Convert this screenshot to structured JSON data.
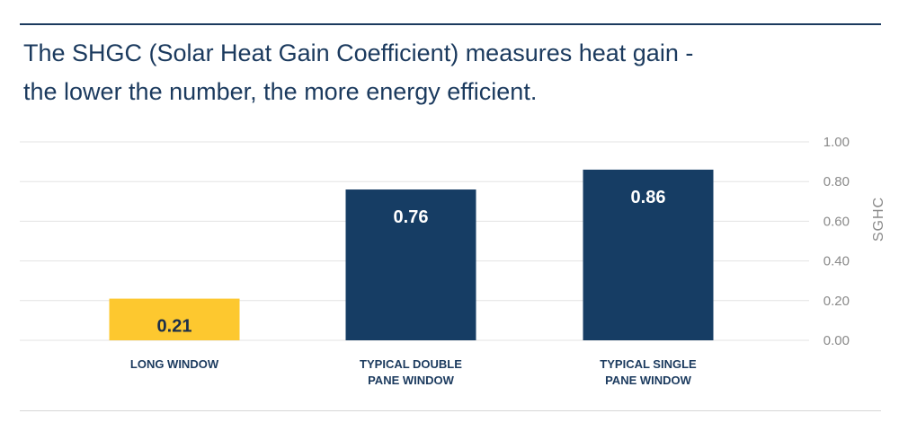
{
  "title_lines": [
    "The SHGC (Solar Heat Gain Coefficient) measures heat gain -",
    "the lower the number, the more energy efficient."
  ],
  "chart_data": {
    "type": "bar",
    "categories": [
      [
        "LONG WINDOW"
      ],
      [
        "TYPICAL DOUBLE",
        "PANE WINDOW"
      ],
      [
        "TYPICAL SINGLE",
        "PANE WINDOW"
      ]
    ],
    "values": [
      0.21,
      0.76,
      0.86
    ],
    "value_labels": [
      "0.21",
      "0.76",
      "0.86"
    ],
    "colors": [
      "#fdc82f",
      "#163d64",
      "#163d64"
    ],
    "label_colors": [
      "#1b2f4a",
      "#ffffff",
      "#ffffff"
    ],
    "ylabel": "SGHC",
    "ylim": [
      0,
      1.0
    ],
    "yticks": [
      "0.00",
      "0.20",
      "0.40",
      "0.60",
      "0.80",
      "1.00"
    ],
    "ytick_values": [
      0,
      0.2,
      0.4,
      0.6,
      0.8,
      1.0
    ],
    "grid": true,
    "legend": "none",
    "axis_position": "right"
  }
}
